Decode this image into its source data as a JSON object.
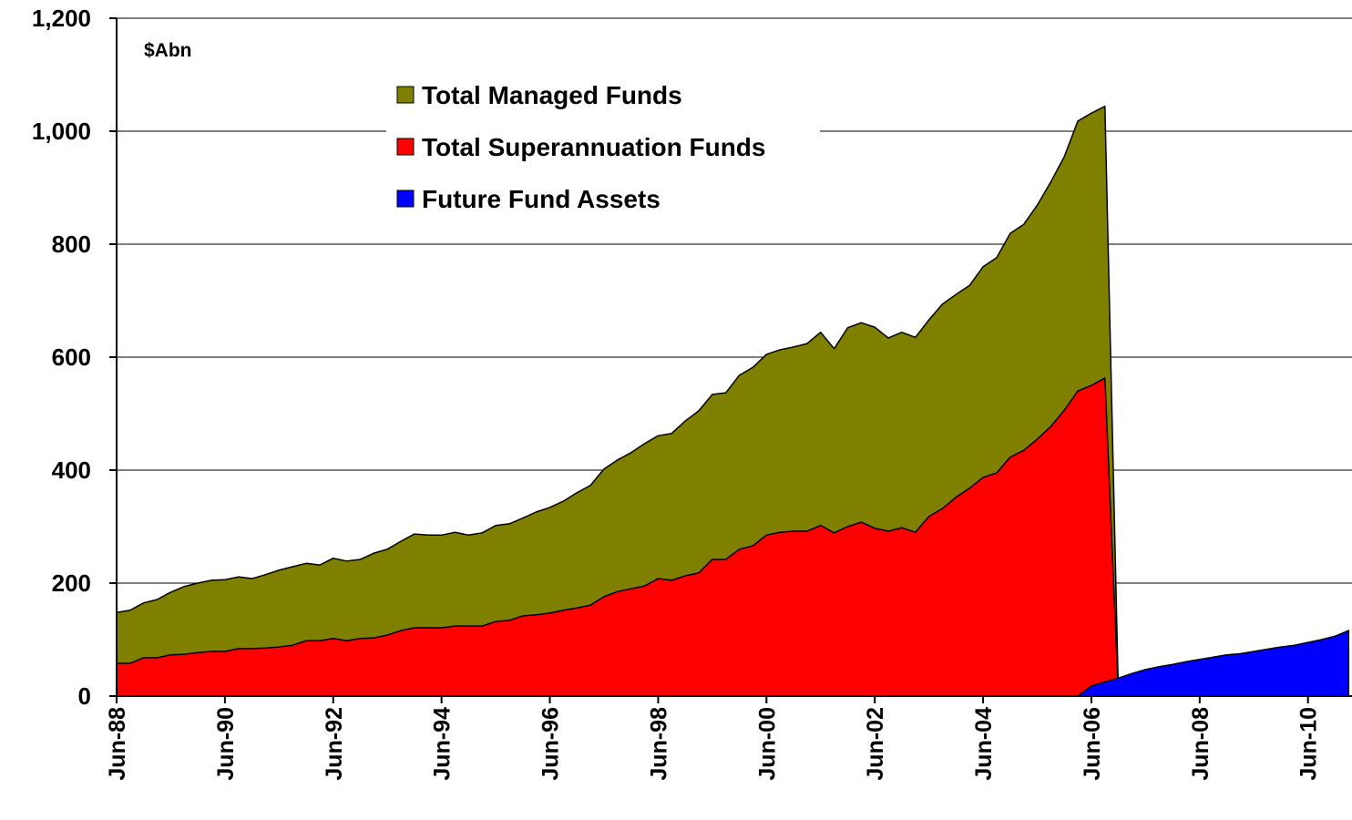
{
  "chart_data": {
    "type": "area",
    "ylabel": "$Abn",
    "ylim": [
      0,
      1200
    ],
    "yticks": [
      0,
      200,
      400,
      600,
      800,
      {
        "value": 1000,
        "label": "1,000"
      },
      {
        "value": 1200,
        "label": "1,200"
      }
    ],
    "grid": true,
    "legend": "top",
    "categories": [
      "Jun-88",
      null,
      null,
      null,
      null,
      null,
      null,
      null,
      "Jun-90",
      null,
      null,
      null,
      null,
      null,
      null,
      null,
      "Jun-92",
      null,
      null,
      null,
      null,
      null,
      null,
      null,
      "Jun-94",
      null,
      null,
      null,
      null,
      null,
      null,
      null,
      "Jun-96",
      null,
      null,
      null,
      null,
      null,
      null,
      null,
      "Jun-98",
      null,
      null,
      null,
      null,
      null,
      null,
      null,
      "Jun-00",
      null,
      null,
      null,
      null,
      null,
      null,
      null,
      "Jun-02",
      null,
      null,
      null,
      null,
      null,
      null,
      null,
      "Jun-04",
      null,
      null,
      null,
      null,
      null,
      null,
      null,
      "Jun-06",
      null,
      null,
      null,
      null,
      null,
      null,
      null,
      "Jun-08",
      null,
      null,
      null,
      null,
      null,
      null,
      null,
      "Jun-10",
      null,
      null,
      null
    ],
    "series": [
      {
        "name": "Total Managed Funds",
        "color": "#808000",
        "values": [
          148,
          152,
          165,
          171,
          184,
          194,
          200,
          205,
          206,
          211,
          208,
          215,
          223,
          229,
          235,
          232,
          244,
          239,
          242,
          253,
          260,
          274,
          287,
          285,
          285,
          290,
          285,
          289,
          302,
          305,
          315,
          326,
          334,
          345,
          360,
          373,
          402,
          418,
          431,
          447,
          461,
          465,
          487,
          505,
          534,
          537,
          568,
          582,
          605,
          613,
          618,
          624,
          644,
          615,
          652,
          661,
          653,
          634,
          644,
          635,
          666,
          694,
          711,
          727,
          760,
          776,
          819,
          835,
          869,
          910,
          955,
          1018,
          1032,
          1044,
          0,
          null,
          null,
          null,
          null,
          null,
          null,
          null,
          null,
          null,
          null,
          null,
          null,
          null,
          null,
          null,
          null,
          null
        ]
      },
      {
        "name": "Total Superannuation Funds",
        "color": "#ff0000",
        "values": [
          58,
          58,
          68,
          68,
          73,
          74,
          77,
          79,
          79,
          84,
          84,
          85,
          87,
          90,
          98,
          98,
          102,
          98,
          102,
          103,
          108,
          116,
          121,
          121,
          121,
          124,
          124,
          124,
          132,
          134,
          142,
          144,
          147,
          152,
          156,
          161,
          176,
          185,
          190,
          195,
          208,
          205,
          213,
          218,
          242,
          242,
          260,
          266,
          285,
          290,
          292,
          292,
          302,
          289,
          300,
          308,
          297,
          292,
          298,
          290,
          318,
          332,
          352,
          368,
          387,
          395,
          423,
          435,
          455,
          477,
          506,
          540,
          550,
          563,
          0,
          null,
          null,
          null,
          null,
          null,
          null,
          null,
          null,
          null,
          null,
          null,
          null,
          null,
          null,
          null,
          null,
          null
        ]
      },
      {
        "name": "Future Fund Assets",
        "color": "#0000ff",
        "values": [
          null,
          null,
          null,
          null,
          null,
          null,
          null,
          null,
          null,
          null,
          null,
          null,
          null,
          null,
          null,
          null,
          null,
          null,
          null,
          null,
          null,
          null,
          null,
          null,
          null,
          null,
          null,
          null,
          null,
          null,
          null,
          null,
          null,
          null,
          null,
          null,
          null,
          null,
          null,
          null,
          null,
          null,
          null,
          null,
          null,
          null,
          null,
          null,
          null,
          null,
          null,
          null,
          null,
          null,
          null,
          null,
          null,
          null,
          null,
          null,
          null,
          null,
          null,
          null,
          null,
          null,
          null,
          null,
          null,
          null,
          null,
          0,
          18,
          25,
          32,
          40,
          47,
          52,
          56,
          61,
          65,
          69,
          73,
          75,
          79,
          83,
          87,
          90,
          95,
          100,
          106,
          116
        ]
      }
    ]
  }
}
